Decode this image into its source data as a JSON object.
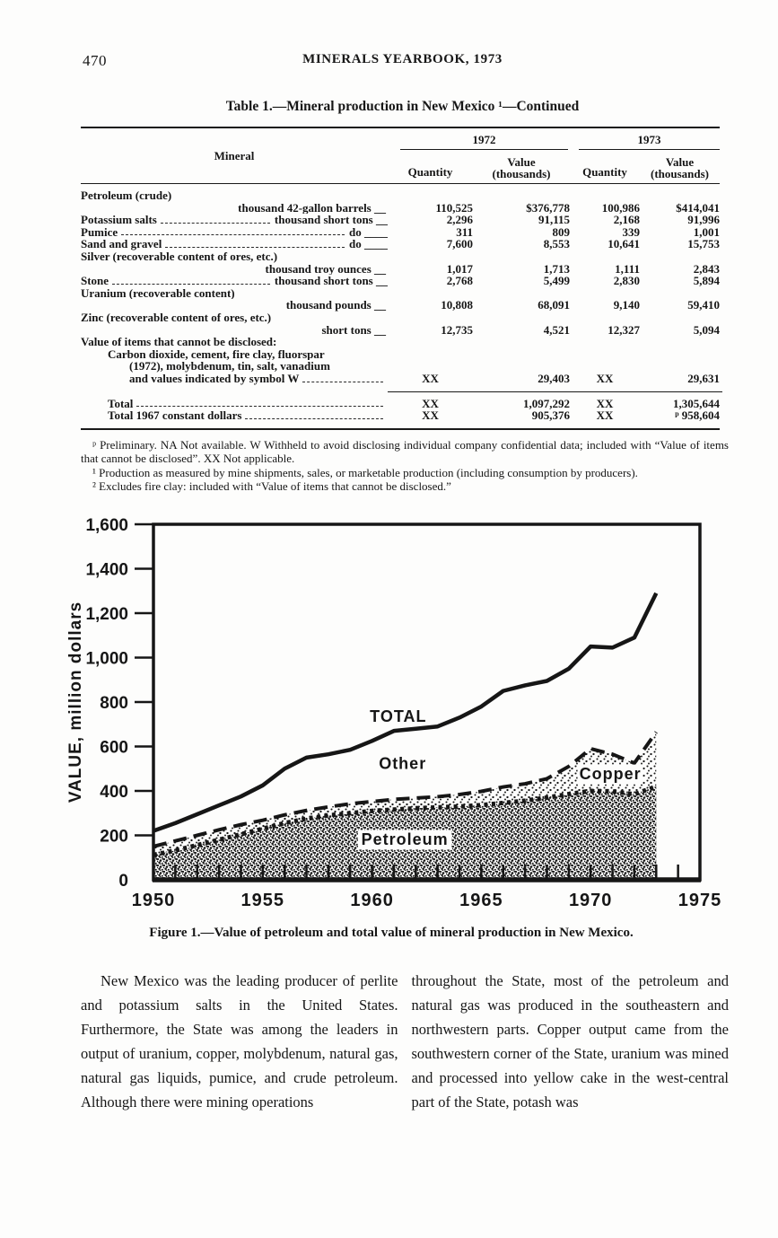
{
  "page": {
    "page_number": "470",
    "running_title": "MINERALS YEARBOOK, 1973"
  },
  "table": {
    "title": "Table 1.—Mineral production in New Mexico ¹—Continued",
    "col_groups": [
      "1972",
      "1973"
    ],
    "col_headers": {
      "mineral": "Mineral",
      "quantity": "Quantity",
      "value_line1": "Value",
      "value_line2": "(thousands)"
    },
    "rows": [
      {
        "style": "plain",
        "name": "Petroleum (crude)"
      },
      {
        "style": "unit",
        "name": "thousand 42-gallon barrels __",
        "q72": "110,525",
        "v72": "$376,778",
        "q73": "100,986",
        "v73": "$414,041"
      },
      {
        "style": "plain",
        "name": "Potassium salts",
        "leader": true,
        "unit": "thousand short tons __",
        "q72": "2,296",
        "v72": "91,115",
        "q73": "2,168",
        "v73": "91,996"
      },
      {
        "style": "plain",
        "name": "Pumice",
        "leader": true,
        "unit": "do ____",
        "q72": "311",
        "v72": "809",
        "q73": "339",
        "v73": "1,001"
      },
      {
        "style": "plain",
        "name": "Sand and gravel",
        "leader": true,
        "unit": "do ____",
        "q72": "7,600",
        "v72": "8,553",
        "q73": "10,641",
        "v73": "15,753"
      },
      {
        "style": "plain",
        "name": "Silver (recoverable content of ores, etc.)"
      },
      {
        "style": "unit",
        "name": "thousand troy ounces __",
        "q72": "1,017",
        "v72": "1,713",
        "q73": "1,111",
        "v73": "2,843"
      },
      {
        "style": "plain",
        "name": "Stone",
        "leader": true,
        "unit": "thousand short tons __",
        "q72": "2,768",
        "v72": "5,499",
        "q73": "2,830",
        "v73": "5,894"
      },
      {
        "style": "plain",
        "name": "Uranium (recoverable content)"
      },
      {
        "style": "unit",
        "name": "thousand pounds __",
        "q72": "10,808",
        "v72": "68,091",
        "q73": "9,140",
        "v73": "59,410"
      },
      {
        "style": "plain",
        "name": "Zinc (recoverable content of ores, etc.)"
      },
      {
        "style": "unit",
        "name": "short tons __",
        "q72": "12,735",
        "v72": "4,521",
        "q73": "12,327",
        "v73": "5,094"
      },
      {
        "style": "plain",
        "name": "Value of items that cannot be disclosed:"
      },
      {
        "style": "indent1",
        "name": "Carbon dioxide, cement, fire clay, fluorspar"
      },
      {
        "style": "indent2",
        "name": "(1972), molybdenum, tin, salt, vanadium"
      },
      {
        "style": "indent2",
        "name": "and values indicated by symbol W",
        "leader": true,
        "unit": "",
        "q72": "XX",
        "v72": "29,403",
        "q73": "XX",
        "v73": "29,631"
      },
      {
        "style": "rule"
      },
      {
        "style": "indent1",
        "name": "Total",
        "leader": true,
        "unit": "",
        "q72": "XX",
        "v72": "1,097,292",
        "q73": "XX",
        "v73": "1,305,644"
      },
      {
        "style": "indent1",
        "name": "Total 1967 constant dollars",
        "leader": true,
        "unit": "",
        "q72": "XX",
        "v72": "905,376",
        "q73": "XX",
        "v73": "ᵖ 958,604"
      }
    ]
  },
  "footnotes": [
    "ᵖ Preliminary. NA Not available. W Withheld to avoid disclosing individual company confidential data; included with “Value of items that cannot be disclosed”. XX Not applicable.",
    "¹ Production as measured by mine shipments, sales, or marketable production (including consumption by producers).",
    "² Excludes fire clay: included with “Value of items that cannot be disclosed.”"
  ],
  "chart_data": {
    "type": "area",
    "title": "",
    "xlabel": "",
    "ylabel": "VALUE, million dollars",
    "xlim": [
      1950,
      1975
    ],
    "ylim": [
      0,
      1600
    ],
    "grid": false,
    "xtick_years": [
      1950,
      1955,
      1960,
      1965,
      1970,
      1975
    ],
    "xtick_labels": [
      "1950",
      "1955",
      "1960",
      "1965",
      "1970",
      "1975"
    ],
    "ytick_values": [
      0,
      200,
      400,
      600,
      800,
      1000,
      1200,
      1400,
      1600
    ],
    "ytick_labels": [
      "0",
      "200",
      "400",
      "600",
      "800",
      "1,000",
      "1,200",
      "1,400",
      "1,600"
    ],
    "years": [
      1950,
      1951,
      1952,
      1953,
      1954,
      1955,
      1956,
      1957,
      1958,
      1959,
      1960,
      1961,
      1962,
      1963,
      1964,
      1965,
      1966,
      1967,
      1968,
      1969,
      1970,
      1971,
      1972,
      1973
    ],
    "series": [
      {
        "name": "TOTAL",
        "style": "solid",
        "values": [
          220,
          255,
          295,
          335,
          375,
          425,
          500,
          550,
          565,
          585,
          625,
          670,
          680,
          690,
          730,
          780,
          850,
          875,
          895,
          950,
          1050,
          1045,
          1090,
          1290
        ]
      },
      {
        "name": "Petroleum plus Copper (top of Copper band)",
        "style": "dashed",
        "values": [
          150,
          175,
          200,
          225,
          248,
          268,
          292,
          312,
          328,
          342,
          352,
          362,
          368,
          374,
          384,
          398,
          418,
          432,
          455,
          510,
          590,
          565,
          525,
          665
        ]
      },
      {
        "name": "Petroleum",
        "style": "dotted",
        "values": [
          112,
          132,
          156,
          180,
          205,
          230,
          255,
          275,
          290,
          300,
          310,
          316,
          322,
          326,
          330,
          336,
          346,
          356,
          370,
          386,
          400,
          398,
          385,
          420
        ]
      }
    ],
    "annotations": [
      {
        "text": "TOTAL",
        "year": 1961.2,
        "value": 712,
        "boxed": false
      },
      {
        "text": "Other",
        "year": 1961.4,
        "value": 498,
        "boxed": false
      },
      {
        "text": "Copper",
        "year": 1970.9,
        "value": 452,
        "boxed": true
      },
      {
        "text": "Petroleum",
        "year": 1961.5,
        "value": 158,
        "boxed": true
      }
    ],
    "colors": {
      "ink": "#161616",
      "paper": "#fdfdfc"
    }
  },
  "figure_caption": "Figure 1.—Value of petroleum and total value of mineral production in New Mexico.",
  "body": {
    "left": "New Mexico was the leading producer of perlite and potassium salts in the United States. Furthermore, the State was among the leaders in output of uranium, copper, molybdenum, natural gas, natural gas liquids, pumice, and crude petroleum. Although there were mining operations",
    "right": "throughout the State, most of the petroleum and natural gas was produced in the southeastern and northwestern parts. Copper output came from the southwestern corner of the State, uranium was mined and processed into yellow cake in the west-central part of the State, potash was"
  }
}
